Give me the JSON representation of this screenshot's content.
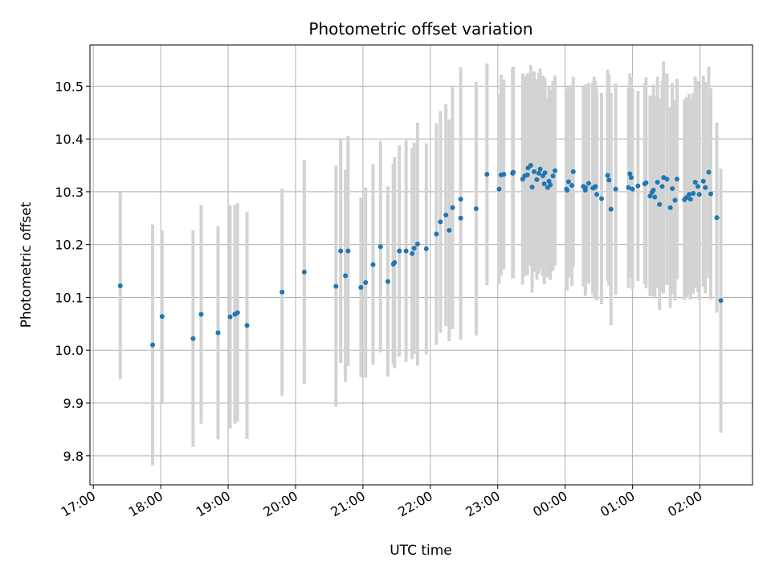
{
  "chart_data": {
    "type": "scatter",
    "title": "Photometric offset variation",
    "xlabel": "UTC time",
    "ylabel": "Photometric offset",
    "x_unit": "hours relative to 00:00 UTC",
    "xlim": [
      -7.05,
      2.78
    ],
    "ylim": [
      9.745,
      10.578
    ],
    "grid": true,
    "x_ticks": [
      {
        "value": -7,
        "label": "17:00"
      },
      {
        "value": -6,
        "label": "18:00"
      },
      {
        "value": -5,
        "label": "19:00"
      },
      {
        "value": -4,
        "label": "20:00"
      },
      {
        "value": -3,
        "label": "21:00"
      },
      {
        "value": -2,
        "label": "22:00"
      },
      {
        "value": -1,
        "label": "23:00"
      },
      {
        "value": 0,
        "label": "00:00"
      },
      {
        "value": 1,
        "label": "01:00"
      },
      {
        "value": 2,
        "label": "02:00"
      }
    ],
    "y_ticks": [
      9.8,
      9.9,
      10.0,
      10.1,
      10.2,
      10.3,
      10.4,
      10.5
    ],
    "y_tick_labels": [
      "9.8",
      "9.9",
      "10.0",
      "10.1",
      "10.2",
      "10.3",
      "10.4",
      "10.5"
    ],
    "colors": {
      "points": "#1f77b4",
      "errorbars": "#d3d3d3",
      "grid": "#b0b0b0"
    },
    "series": [
      {
        "x": [
          -6.6,
          -6.12,
          -5.98,
          -5.52,
          -5.4,
          -5.15,
          -4.97,
          -4.9,
          -4.86,
          -4.72,
          -4.2,
          -3.87,
          -3.4,
          -3.33,
          -3.26,
          -3.22,
          -3.03,
          -2.96,
          -2.85,
          -2.74,
          -2.63,
          -2.55,
          -2.53,
          -2.46,
          -2.36,
          -2.27,
          -2.24,
          -2.19,
          -2.06,
          -1.91,
          -1.85,
          -1.77,
          -1.72,
          -1.67,
          -1.55,
          -1.55,
          -1.32,
          -1.16,
          -0.98,
          -0.95,
          -0.91,
          -0.78,
          -0.77,
          -0.63,
          -0.6,
          -0.56,
          -0.55,
          -0.51,
          -0.49,
          -0.46,
          -0.42,
          -0.39,
          -0.37,
          -0.33,
          -0.31,
          -0.3,
          -0.26,
          -0.24,
          -0.22,
          -0.18,
          -0.15,
          0.02,
          0.03,
          0.05,
          0.1,
          0.12,
          0.27,
          0.3,
          0.3,
          0.35,
          0.41,
          0.43,
          0.45,
          0.47,
          0.54,
          0.63,
          0.65,
          0.68,
          0.75,
          0.94,
          0.96,
          0.98,
          1.0,
          1.08,
          1.18,
          1.2,
          1.26,
          1.29,
          1.31,
          1.33,
          1.37,
          1.4,
          1.44,
          1.46,
          1.51,
          1.56,
          1.59,
          1.63,
          1.66,
          1.77,
          1.8,
          1.84,
          1.86,
          1.9,
          1.93,
          1.97,
          1.99,
          2.05,
          2.08,
          2.13,
          2.16,
          2.25,
          2.31
        ],
        "y": [
          10.122,
          10.01,
          10.064,
          10.022,
          10.068,
          10.033,
          10.063,
          10.068,
          10.071,
          10.047,
          10.11,
          10.148,
          10.121,
          10.188,
          10.141,
          10.188,
          10.119,
          10.128,
          10.162,
          10.196,
          10.13,
          10.163,
          10.166,
          10.188,
          10.188,
          10.183,
          10.193,
          10.201,
          10.192,
          10.22,
          10.243,
          10.256,
          10.227,
          10.27,
          10.286,
          10.25,
          10.268,
          10.333,
          10.305,
          10.332,
          10.333,
          10.335,
          10.337,
          10.324,
          10.33,
          10.332,
          10.345,
          10.35,
          10.309,
          10.338,
          10.323,
          10.335,
          10.343,
          10.33,
          10.315,
          10.336,
          10.308,
          10.32,
          10.313,
          10.33,
          10.34,
          10.305,
          10.303,
          10.319,
          10.312,
          10.338,
          10.31,
          10.303,
          10.308,
          10.316,
          10.307,
          10.308,
          10.31,
          10.295,
          10.287,
          10.331,
          10.322,
          10.267,
          10.305,
          10.308,
          10.334,
          10.327,
          10.305,
          10.311,
          10.315,
          10.317,
          10.292,
          10.299,
          10.303,
          10.29,
          10.318,
          10.276,
          10.31,
          10.327,
          10.324,
          10.27,
          10.306,
          10.284,
          10.324,
          10.285,
          10.289,
          10.295,
          10.286,
          10.297,
          10.318,
          10.31,
          10.295,
          10.32,
          10.308,
          10.337,
          10.296,
          10.251,
          10.094
        ],
        "err": [
          0.177,
          0.228,
          0.163,
          0.205,
          0.207,
          0.202,
          0.211,
          0.207,
          0.207,
          0.215,
          0.196,
          0.212,
          0.228,
          0.212,
          0.201,
          0.218,
          0.17,
          0.18,
          0.19,
          0.2,
          0.18,
          0.19,
          0.2,
          0.2,
          0.21,
          0.2,
          0.2,
          0.23,
          0.2,
          0.21,
          0.21,
          0.21,
          0.21,
          0.23,
          0.25,
          0.23,
          0.24,
          0.21,
          0.18,
          0.19,
          0.18,
          0.2,
          0.2,
          0.2,
          0.19,
          0.19,
          0.18,
          0.19,
          0.2,
          0.19,
          0.19,
          0.19,
          0.19,
          0.19,
          0.19,
          0.18,
          0.17,
          0.18,
          0.18,
          0.18,
          0.18,
          0.19,
          0.19,
          0.18,
          0.19,
          0.18,
          0.19,
          0.2,
          0.19,
          0.19,
          0.2,
          0.21,
          0.2,
          0.2,
          0.2,
          0.2,
          0.2,
          0.22,
          0.2,
          0.19,
          0.19,
          0.19,
          0.19,
          0.18,
          0.19,
          0.2,
          0.19,
          0.18,
          0.2,
          0.19,
          0.2,
          0.2,
          0.2,
          0.22,
          0.2,
          0.19,
          0.2,
          0.19,
          0.19,
          0.19,
          0.19,
          0.19,
          0.19,
          0.19,
          0.2,
          0.2,
          0.2,
          0.2,
          0.2,
          0.2,
          0.2,
          0.18,
          0.25
        ]
      }
    ]
  }
}
